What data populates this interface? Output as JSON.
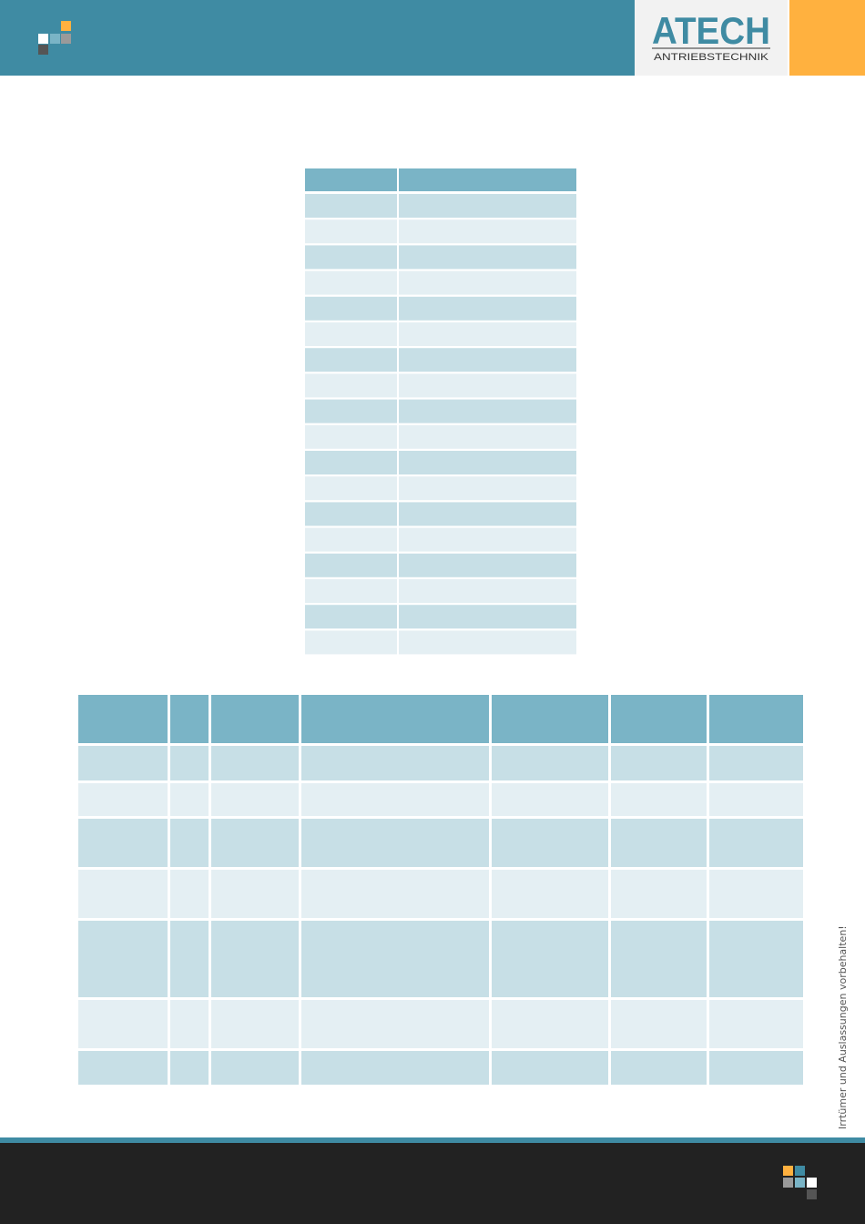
{
  "header": {
    "brand": "ATECH",
    "brand_sub": "ANTRIEBSTECHNIK"
  },
  "side_note": "Irrtümer und Auslassungen vorbehalten!"
}
